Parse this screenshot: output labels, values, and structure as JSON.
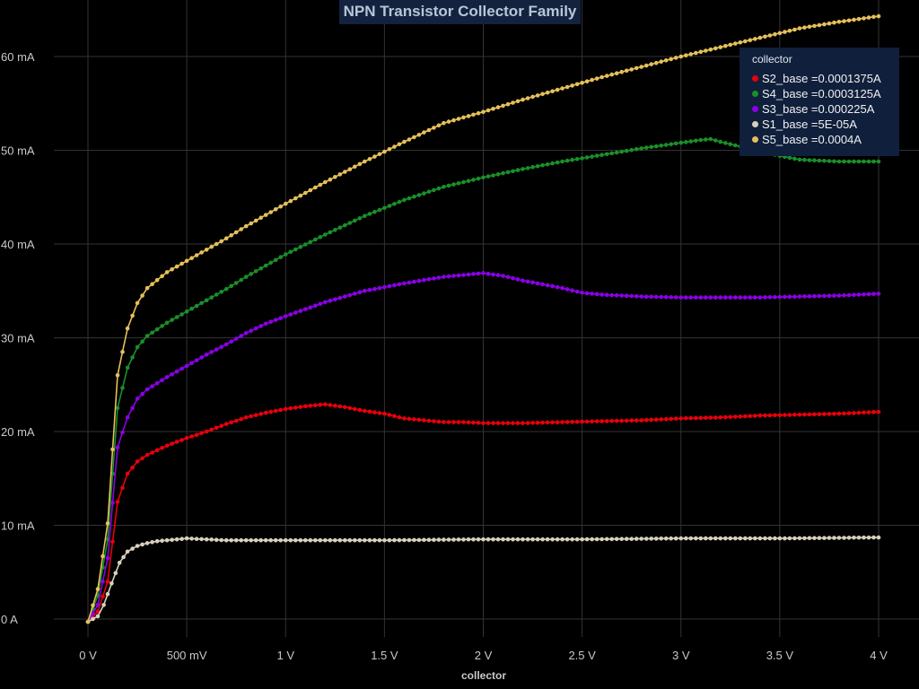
{
  "chart_data": {
    "type": "line",
    "title": "NPN Transistor Collector Family",
    "xlabel": "collector",
    "ylabel": "",
    "legend_title": "collector",
    "legend_position": "top-right",
    "grid": true,
    "xlim": [
      0,
      4
    ],
    "ylim": [
      0,
      0.065
    ],
    "x_ticks": [
      {
        "value": 0,
        "label": "0 V"
      },
      {
        "value": 0.5,
        "label": "500 mV"
      },
      {
        "value": 1,
        "label": "1 V"
      },
      {
        "value": 1.5,
        "label": "1.5 V"
      },
      {
        "value": 2,
        "label": "2 V"
      },
      {
        "value": 2.5,
        "label": "2.5 V"
      },
      {
        "value": 3,
        "label": "3 V"
      },
      {
        "value": 3.5,
        "label": "3.5 V"
      },
      {
        "value": 4,
        "label": "4 V"
      }
    ],
    "y_ticks": [
      {
        "value": 0,
        "label": "0 A"
      },
      {
        "value": 0.01,
        "label": "10 mA"
      },
      {
        "value": 0.02,
        "label": "20 mA"
      },
      {
        "value": 0.03,
        "label": "30 mA"
      },
      {
        "value": 0.04,
        "label": "40 mA"
      },
      {
        "value": 0.05,
        "label": "50 mA"
      },
      {
        "value": 0.06,
        "label": "60 mA"
      }
    ],
    "series": [
      {
        "name": "S2_base =0.0001375A",
        "color": "#e8000b",
        "points": [
          [
            0,
            -0.0003
          ],
          [
            0.05,
            0.0008
          ],
          [
            0.1,
            0.004
          ],
          [
            0.15,
            0.0125
          ],
          [
            0.2,
            0.0155
          ],
          [
            0.25,
            0.0168
          ],
          [
            0.3,
            0.0175
          ],
          [
            0.4,
            0.0185
          ],
          [
            0.5,
            0.0193
          ],
          [
            0.6,
            0.02
          ],
          [
            0.7,
            0.0208
          ],
          [
            0.8,
            0.0215
          ],
          [
            0.9,
            0.022
          ],
          [
            1.0,
            0.0224
          ],
          [
            1.1,
            0.0227
          ],
          [
            1.2,
            0.0229
          ],
          [
            1.3,
            0.0226
          ],
          [
            1.4,
            0.0222
          ],
          [
            1.5,
            0.0219
          ],
          [
            1.6,
            0.0214
          ],
          [
            1.7,
            0.0212
          ],
          [
            1.8,
            0.021
          ],
          [
            1.9,
            0.021
          ],
          [
            2.0,
            0.0209
          ],
          [
            2.2,
            0.0209
          ],
          [
            2.4,
            0.021
          ],
          [
            2.6,
            0.0211
          ],
          [
            2.8,
            0.0212
          ],
          [
            3.0,
            0.0214
          ],
          [
            3.2,
            0.0215
          ],
          [
            3.4,
            0.0217
          ],
          [
            3.6,
            0.0218
          ],
          [
            3.8,
            0.0219
          ],
          [
            4.0,
            0.0221
          ]
        ]
      },
      {
        "name": "S4_base =0.0003125A",
        "color": "#1a8f2a",
        "points": [
          [
            0,
            -0.0003
          ],
          [
            0.05,
            0.0025
          ],
          [
            0.1,
            0.0085
          ],
          [
            0.15,
            0.0225
          ],
          [
            0.2,
            0.0268
          ],
          [
            0.25,
            0.029
          ],
          [
            0.3,
            0.0302
          ],
          [
            0.4,
            0.0316
          ],
          [
            0.5,
            0.0328
          ],
          [
            0.6,
            0.034
          ],
          [
            0.7,
            0.0352
          ],
          [
            0.8,
            0.0365
          ],
          [
            0.9,
            0.0377
          ],
          [
            1.0,
            0.0389
          ],
          [
            1.2,
            0.041
          ],
          [
            1.4,
            0.043
          ],
          [
            1.6,
            0.0447
          ],
          [
            1.8,
            0.0461
          ],
          [
            2.0,
            0.0471
          ],
          [
            2.2,
            0.048
          ],
          [
            2.4,
            0.0488
          ],
          [
            2.6,
            0.0495
          ],
          [
            2.8,
            0.0502
          ],
          [
            3.0,
            0.0508
          ],
          [
            3.1,
            0.0511
          ],
          [
            3.15,
            0.0512
          ],
          [
            3.2,
            0.0509
          ],
          [
            3.3,
            0.0504
          ],
          [
            3.4,
            0.0499
          ],
          [
            3.5,
            0.0494
          ],
          [
            3.6,
            0.049
          ],
          [
            3.7,
            0.0489
          ],
          [
            3.8,
            0.0488
          ],
          [
            3.9,
            0.0488
          ],
          [
            4.0,
            0.0488
          ]
        ]
      },
      {
        "name": "S3_base =0.000225A",
        "color": "#8b00e8",
        "points": [
          [
            0,
            -0.0003
          ],
          [
            0.05,
            0.0015
          ],
          [
            0.1,
            0.0065
          ],
          [
            0.15,
            0.0183
          ],
          [
            0.2,
            0.0215
          ],
          [
            0.25,
            0.0235
          ],
          [
            0.3,
            0.0245
          ],
          [
            0.4,
            0.0258
          ],
          [
            0.5,
            0.027
          ],
          [
            0.6,
            0.0282
          ],
          [
            0.7,
            0.0293
          ],
          [
            0.8,
            0.0305
          ],
          [
            0.9,
            0.0315
          ],
          [
            1.0,
            0.0323
          ],
          [
            1.2,
            0.0338
          ],
          [
            1.4,
            0.035
          ],
          [
            1.6,
            0.0358
          ],
          [
            1.8,
            0.0365
          ],
          [
            2.0,
            0.0369
          ],
          [
            2.1,
            0.0366
          ],
          [
            2.2,
            0.0361
          ],
          [
            2.4,
            0.0353
          ],
          [
            2.5,
            0.0348
          ],
          [
            2.6,
            0.0346
          ],
          [
            2.8,
            0.0344
          ],
          [
            3.0,
            0.0343
          ],
          [
            3.2,
            0.0343
          ],
          [
            3.4,
            0.0343
          ],
          [
            3.6,
            0.0344
          ],
          [
            3.8,
            0.0345
          ],
          [
            4.0,
            0.0347
          ]
        ]
      },
      {
        "name": "S1_base =5E-05A",
        "color": "#d8d0bc",
        "points": [
          [
            0,
            -0.0003
          ],
          [
            0.05,
            0.0003
          ],
          [
            0.08,
            0.0015
          ],
          [
            0.12,
            0.0038
          ],
          [
            0.16,
            0.006
          ],
          [
            0.2,
            0.0072
          ],
          [
            0.25,
            0.0078
          ],
          [
            0.3,
            0.0081
          ],
          [
            0.35,
            0.0083
          ],
          [
            0.4,
            0.0084
          ],
          [
            0.45,
            0.0085
          ],
          [
            0.5,
            0.0086
          ],
          [
            0.6,
            0.0085
          ],
          [
            0.7,
            0.0084
          ],
          [
            0.8,
            0.0084
          ],
          [
            0.9,
            0.0084
          ],
          [
            1.0,
            0.0084
          ],
          [
            1.5,
            0.0084
          ],
          [
            2.0,
            0.0085
          ],
          [
            2.5,
            0.0085
          ],
          [
            3.0,
            0.0086
          ],
          [
            3.5,
            0.0086
          ],
          [
            4.0,
            0.0087
          ]
        ]
      },
      {
        "name": "S5_base =0.0004A",
        "color": "#e5c05a",
        "points": [
          [
            0,
            -0.0003
          ],
          [
            0.05,
            0.0032
          ],
          [
            0.1,
            0.0102
          ],
          [
            0.15,
            0.026
          ],
          [
            0.2,
            0.031
          ],
          [
            0.25,
            0.0337
          ],
          [
            0.3,
            0.0353
          ],
          [
            0.4,
            0.037
          ],
          [
            0.5,
            0.0382
          ],
          [
            0.6,
            0.0394
          ],
          [
            0.7,
            0.0406
          ],
          [
            0.8,
            0.0419
          ],
          [
            0.9,
            0.0431
          ],
          [
            1.0,
            0.0443
          ],
          [
            1.2,
            0.0466
          ],
          [
            1.4,
            0.0488
          ],
          [
            1.6,
            0.0509
          ],
          [
            1.8,
            0.0529
          ],
          [
            2.0,
            0.0541
          ],
          [
            2.2,
            0.0554
          ],
          [
            2.4,
            0.0566
          ],
          [
            2.6,
            0.0578
          ],
          [
            2.8,
            0.0589
          ],
          [
            3.0,
            0.06
          ],
          [
            3.2,
            0.061
          ],
          [
            3.4,
            0.062
          ],
          [
            3.6,
            0.063
          ],
          [
            3.8,
            0.0637
          ],
          [
            4.0,
            0.0643
          ]
        ]
      }
    ],
    "legend_order": [
      0,
      1,
      2,
      3,
      4
    ]
  }
}
